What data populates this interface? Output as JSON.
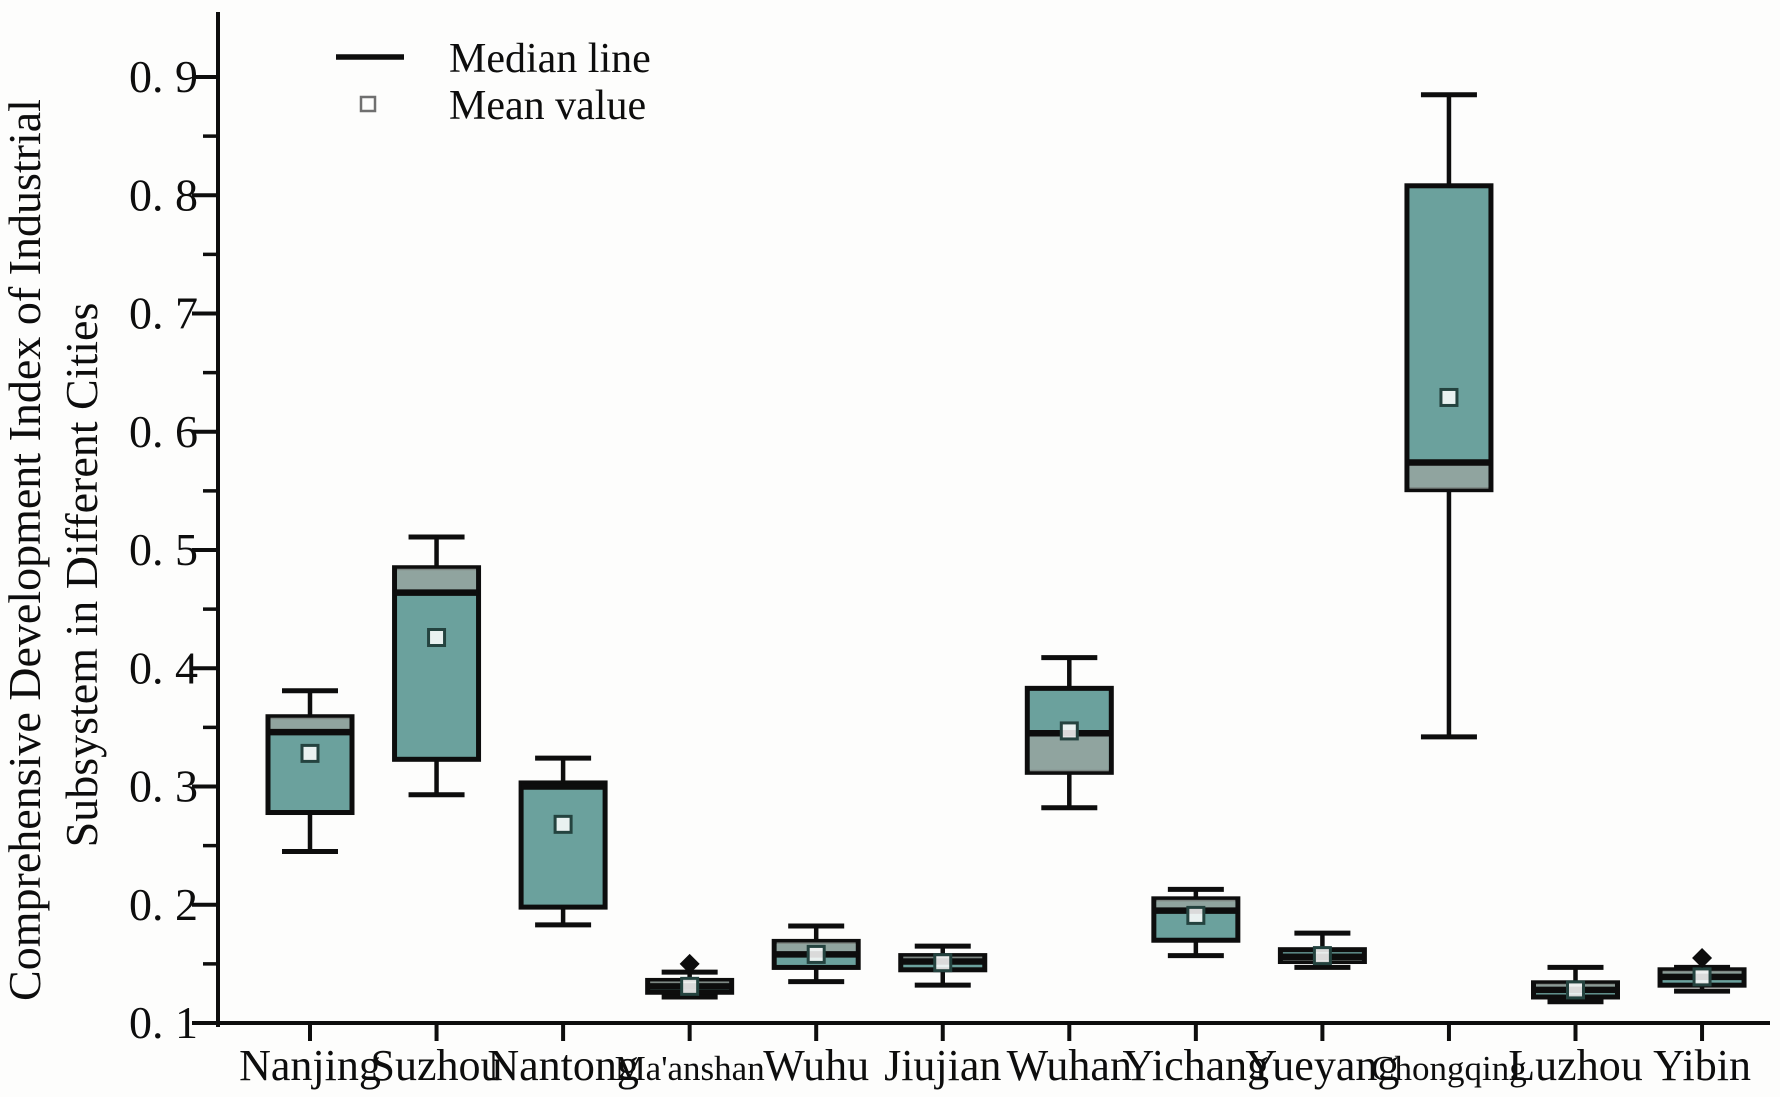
{
  "figure": {
    "background": "#fdfdfc",
    "box_fill_color": "#6ba19d",
    "box_stroke_color": "#0d0d0d",
    "quartile_band_color": "#9aa5a0",
    "mean_marker_stroke": "#24433f",
    "outlier_color": "#0d0d0d"
  },
  "legend": {
    "median_label": "Median line",
    "mean_label": "Mean value"
  },
  "y_axis": {
    "title_line1": "Comprehensive Development Index of Industrial",
    "title_line2": "Subsystem in Different Cities",
    "min": 0.1,
    "max": 0.9,
    "major_step": 0.1,
    "minor_step": 0.05,
    "tick_labels": [
      "0. 1",
      "0. 2",
      "0. 3",
      "0. 4",
      "0. 5",
      "0. 6",
      "0. 7",
      "0. 8",
      "0. 9"
    ]
  },
  "chart_data": {
    "type": "box",
    "title": "",
    "xlabel": "",
    "ylabel": "Comprehensive Development Index of Industrial Subsystem in Different Cities",
    "ylim": [
      0.1,
      0.9
    ],
    "grid": false,
    "legend_position": "top-left",
    "categories": [
      "Nanjing",
      "Suzhou",
      "Nantong",
      "Ma'anshan",
      "Wuhu",
      "Jiujian",
      "Wuhan",
      "Yichang",
      "Yueyang",
      "Chongqing",
      "Luzhou",
      "Yibin"
    ],
    "small_label_categories": [
      "Ma'anshan",
      "Chongqing"
    ],
    "series": [
      {
        "name": "Nanjing",
        "whisker_low": 0.245,
        "q1": 0.278,
        "median": 0.346,
        "q3": 0.359,
        "whisker_high": 0.381,
        "mean": 0.328,
        "outliers": []
      },
      {
        "name": "Suzhou",
        "whisker_low": 0.293,
        "q1": 0.323,
        "median": 0.464,
        "q3": 0.485,
        "whisker_high": 0.511,
        "mean": 0.426,
        "outliers": []
      },
      {
        "name": "Nantong",
        "whisker_low": 0.183,
        "q1": 0.198,
        "median": 0.3,
        "q3": 0.303,
        "whisker_high": 0.324,
        "mean": 0.268,
        "outliers": []
      },
      {
        "name": "Ma'anshan",
        "whisker_low": 0.122,
        "q1": 0.126,
        "median": 0.131,
        "q3": 0.136,
        "whisker_high": 0.143,
        "mean": 0.131,
        "outliers": [
          0.15
        ]
      },
      {
        "name": "Wuhu",
        "whisker_low": 0.135,
        "q1": 0.147,
        "median": 0.158,
        "q3": 0.169,
        "whisker_high": 0.182,
        "mean": 0.158,
        "outliers": []
      },
      {
        "name": "Jiujian",
        "whisker_low": 0.132,
        "q1": 0.145,
        "median": 0.152,
        "q3": 0.157,
        "whisker_high": 0.165,
        "mean": 0.151,
        "outliers": []
      },
      {
        "name": "Wuhan",
        "whisker_low": 0.282,
        "q1": 0.312,
        "median": 0.345,
        "q3": 0.383,
        "whisker_high": 0.409,
        "mean": 0.347,
        "outliers": []
      },
      {
        "name": "Yichang",
        "whisker_low": 0.157,
        "q1": 0.17,
        "median": 0.195,
        "q3": 0.205,
        "whisker_high": 0.213,
        "mean": 0.191,
        "outliers": []
      },
      {
        "name": "Yueyang",
        "whisker_low": 0.147,
        "q1": 0.152,
        "median": 0.156,
        "q3": 0.162,
        "whisker_high": 0.176,
        "mean": 0.157,
        "outliers": []
      },
      {
        "name": "Chongqing",
        "whisker_low": 0.342,
        "q1": 0.551,
        "median": 0.574,
        "q3": 0.808,
        "whisker_high": 0.885,
        "mean": 0.629,
        "outliers": []
      },
      {
        "name": "Luzhou",
        "whisker_low": 0.118,
        "q1": 0.122,
        "median": 0.128,
        "q3": 0.134,
        "whisker_high": 0.147,
        "mean": 0.128,
        "outliers": []
      },
      {
        "name": "Yibin",
        "whisker_low": 0.127,
        "q1": 0.132,
        "median": 0.139,
        "q3": 0.145,
        "whisker_high": 0.147,
        "mean": 0.139,
        "outliers": [
          0.155
        ]
      }
    ]
  }
}
